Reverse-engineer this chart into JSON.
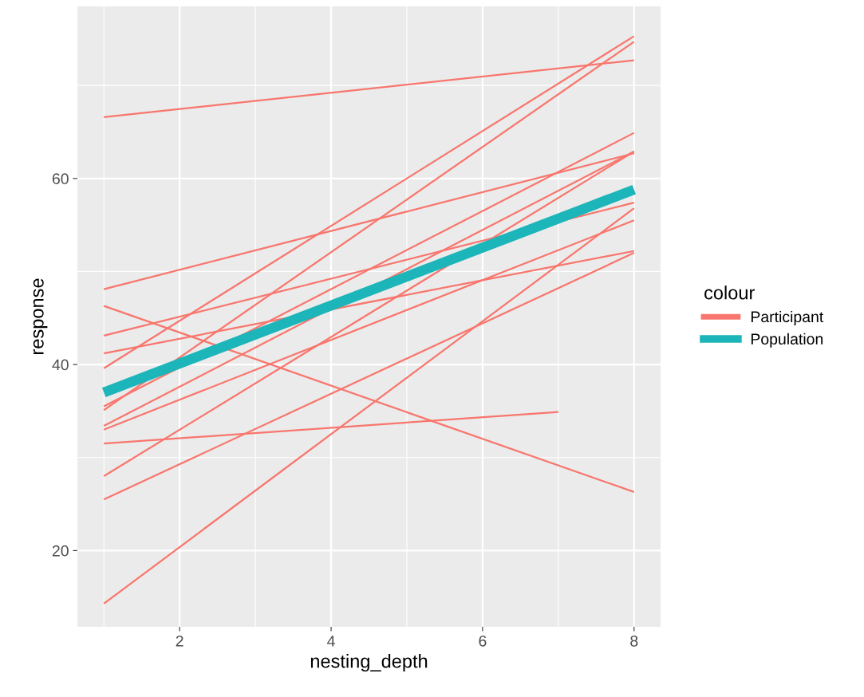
{
  "chart_data": {
    "type": "line",
    "xlabel": "nesting_depth",
    "ylabel": "response",
    "legend_title": "colour",
    "legend": "right",
    "grid": true,
    "xlim": [
      0.65,
      8.35
    ],
    "ylim": [
      11.8,
      78.5
    ],
    "xticks": [
      {
        "value": 1,
        "label": null
      },
      2,
      {
        "value": 3,
        "label": null
      },
      4,
      {
        "value": 5,
        "label": null
      },
      6,
      {
        "value": 7,
        "label": null
      },
      8
    ],
    "yticks": [
      20,
      {
        "value": 30,
        "label": null
      },
      40,
      {
        "value": 50,
        "label": null
      },
      60,
      {
        "value": 70,
        "label": null
      }
    ],
    "series": [
      {
        "name": "Participant",
        "color": "#f8766d",
        "x": [
          1,
          8
        ],
        "values": [
          66.6,
          72.7
        ]
      },
      {
        "color": "#f8766d",
        "x": [
          1,
          8
        ],
        "values": [
          39.6,
          75.3
        ]
      },
      {
        "color": "#f8766d",
        "x": [
          1,
          8
        ],
        "values": [
          35.1,
          74.7
        ]
      },
      {
        "color": "#f8766d",
        "x": [
          1,
          8
        ],
        "values": [
          48.1,
          62.7
        ]
      },
      {
        "color": "#f8766d",
        "x": [
          1,
          8
        ],
        "values": [
          43.1,
          57.4
        ]
      },
      {
        "color": "#f8766d",
        "x": [
          1,
          8
        ],
        "values": [
          41.2,
          52.2
        ]
      },
      {
        "color": "#f8766d",
        "x": [
          1,
          8
        ],
        "values": [
          35.5,
          64.9
        ]
      },
      {
        "color": "#f8766d",
        "x": [
          1,
          8
        ],
        "values": [
          33.4,
          62.9
        ]
      },
      {
        "color": "#f8766d",
        "x": [
          1,
          8
        ],
        "values": [
          33.0,
          55.5
        ]
      },
      {
        "color": "#f8766d",
        "x": [
          1,
          8
        ],
        "values": [
          28.0,
          62.9
        ]
      },
      {
        "color": "#f8766d",
        "x": [
          1,
          8
        ],
        "values": [
          25.5,
          52.0
        ]
      },
      {
        "color": "#f8766d",
        "x": [
          1,
          8
        ],
        "values": [
          14.3,
          56.8
        ]
      },
      {
        "color": "#f8766d",
        "x": [
          1,
          8
        ],
        "values": [
          46.3,
          26.3
        ]
      },
      {
        "color": "#f8766d",
        "x": [
          1,
          7
        ],
        "values": [
          31.5,
          34.9
        ]
      },
      {
        "name": "Population",
        "color": "#1cb5b9",
        "x": [
          1,
          8
        ],
        "values": [
          37.0,
          58.8
        ]
      }
    ]
  }
}
